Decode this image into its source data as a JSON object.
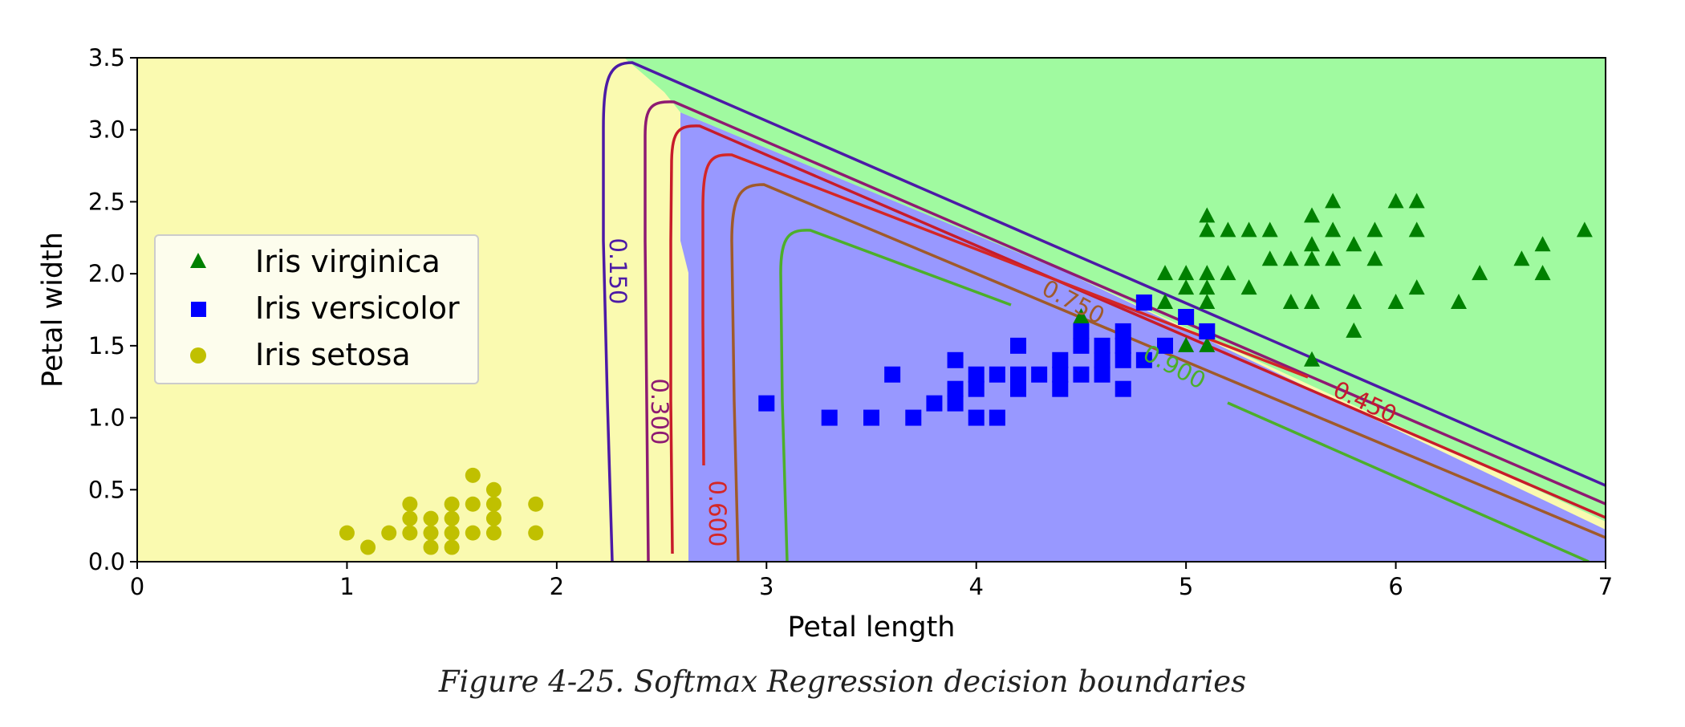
{
  "figure": {
    "caption": "Figure 4-25. Softmax Regression decision boundaries"
  },
  "chart_data": {
    "type": "scatter",
    "title": "",
    "xlabel": "Petal length",
    "ylabel": "Petal width",
    "xlim": [
      0,
      7
    ],
    "ylim": [
      0,
      3.5
    ],
    "xticks": [
      "0",
      "1",
      "2",
      "3",
      "4",
      "5",
      "6",
      "7"
    ],
    "yticks": [
      "0.0",
      "0.5",
      "1.0",
      "1.5",
      "2.0",
      "2.5",
      "3.0",
      "3.5"
    ],
    "grid": false,
    "legend_position": "center-left",
    "regions": [
      {
        "class": "Iris setosa",
        "color": "#fafab0"
      },
      {
        "class": "Iris versicolor",
        "color": "#9898ff"
      },
      {
        "class": "Iris virginica",
        "color": "#a0faa0"
      }
    ],
    "contour_levels": [
      {
        "label": "0.150",
        "color": "#4c1aa6"
      },
      {
        "label": "0.300",
        "color": "#8e1a72"
      },
      {
        "label": "0.450",
        "color": "#c71c2a"
      },
      {
        "label": "0.600",
        "color": "#d42626"
      },
      {
        "label": "0.750",
        "color": "#a05a2a"
      },
      {
        "label": "0.900",
        "color": "#4caf2a"
      }
    ],
    "series": [
      {
        "name": "Iris virginica",
        "marker": "triangle",
        "color": "#008000",
        "points": [
          [
            4.9,
            2.0
          ],
          [
            4.9,
            1.8
          ],
          [
            5.0,
            2.0
          ],
          [
            5.0,
            1.9
          ],
          [
            5.0,
            1.5
          ],
          [
            5.1,
            2.4
          ],
          [
            5.1,
            2.3
          ],
          [
            5.1,
            2.0
          ],
          [
            5.1,
            1.9
          ],
          [
            5.1,
            1.8
          ],
          [
            5.1,
            1.5
          ],
          [
            5.2,
            2.3
          ],
          [
            5.2,
            2.0
          ],
          [
            5.3,
            2.3
          ],
          [
            5.3,
            1.9
          ],
          [
            5.4,
            2.3
          ],
          [
            5.4,
            2.1
          ],
          [
            5.5,
            2.1
          ],
          [
            5.5,
            1.8
          ],
          [
            5.6,
            2.4
          ],
          [
            5.6,
            2.2
          ],
          [
            5.6,
            2.1
          ],
          [
            5.6,
            1.8
          ],
          [
            5.6,
            1.4
          ],
          [
            5.7,
            2.5
          ],
          [
            5.7,
            2.3
          ],
          [
            5.7,
            2.1
          ],
          [
            5.8,
            2.2
          ],
          [
            5.8,
            1.8
          ],
          [
            5.8,
            1.6
          ],
          [
            5.9,
            2.3
          ],
          [
            5.9,
            2.1
          ],
          [
            6.0,
            2.5
          ],
          [
            6.0,
            1.8
          ],
          [
            6.1,
            2.5
          ],
          [
            6.1,
            2.3
          ],
          [
            6.1,
            1.9
          ],
          [
            6.3,
            1.8
          ],
          [
            6.4,
            2.0
          ],
          [
            6.6,
            2.1
          ],
          [
            6.7,
            2.2
          ],
          [
            6.7,
            2.0
          ],
          [
            6.9,
            2.3
          ],
          [
            4.5,
            1.7
          ]
        ]
      },
      {
        "name": "Iris versicolor",
        "marker": "square",
        "color": "#0000ff",
        "points": [
          [
            3.0,
            1.1
          ],
          [
            3.3,
            1.0
          ],
          [
            3.5,
            1.0
          ],
          [
            3.6,
            1.3
          ],
          [
            3.7,
            1.0
          ],
          [
            3.8,
            1.1
          ],
          [
            3.9,
            1.4
          ],
          [
            3.9,
            1.2
          ],
          [
            3.9,
            1.1
          ],
          [
            4.0,
            1.3
          ],
          [
            4.0,
            1.2
          ],
          [
            4.0,
            1.0
          ],
          [
            4.1,
            1.3
          ],
          [
            4.1,
            1.0
          ],
          [
            4.2,
            1.5
          ],
          [
            4.2,
            1.3
          ],
          [
            4.2,
            1.2
          ],
          [
            4.3,
            1.3
          ],
          [
            4.4,
            1.4
          ],
          [
            4.4,
            1.3
          ],
          [
            4.4,
            1.2
          ],
          [
            4.5,
            1.6
          ],
          [
            4.5,
            1.5
          ],
          [
            4.5,
            1.3
          ],
          [
            4.6,
            1.5
          ],
          [
            4.6,
            1.4
          ],
          [
            4.6,
            1.3
          ],
          [
            4.7,
            1.6
          ],
          [
            4.7,
            1.5
          ],
          [
            4.7,
            1.4
          ],
          [
            4.7,
            1.2
          ],
          [
            4.8,
            1.8
          ],
          [
            4.8,
            1.4
          ],
          [
            4.9,
            1.5
          ],
          [
            5.0,
            1.7
          ],
          [
            5.1,
            1.6
          ]
        ]
      },
      {
        "name": "Iris setosa",
        "marker": "circle",
        "color": "#c0c000",
        "points": [
          [
            1.0,
            0.2
          ],
          [
            1.1,
            0.1
          ],
          [
            1.2,
            0.2
          ],
          [
            1.3,
            0.4
          ],
          [
            1.3,
            0.3
          ],
          [
            1.3,
            0.2
          ],
          [
            1.4,
            0.3
          ],
          [
            1.4,
            0.2
          ],
          [
            1.4,
            0.1
          ],
          [
            1.5,
            0.4
          ],
          [
            1.5,
            0.3
          ],
          [
            1.5,
            0.2
          ],
          [
            1.5,
            0.1
          ],
          [
            1.6,
            0.6
          ],
          [
            1.6,
            0.4
          ],
          [
            1.6,
            0.2
          ],
          [
            1.7,
            0.5
          ],
          [
            1.7,
            0.4
          ],
          [
            1.7,
            0.3
          ],
          [
            1.7,
            0.2
          ],
          [
            1.9,
            0.4
          ],
          [
            1.9,
            0.2
          ]
        ]
      }
    ]
  }
}
